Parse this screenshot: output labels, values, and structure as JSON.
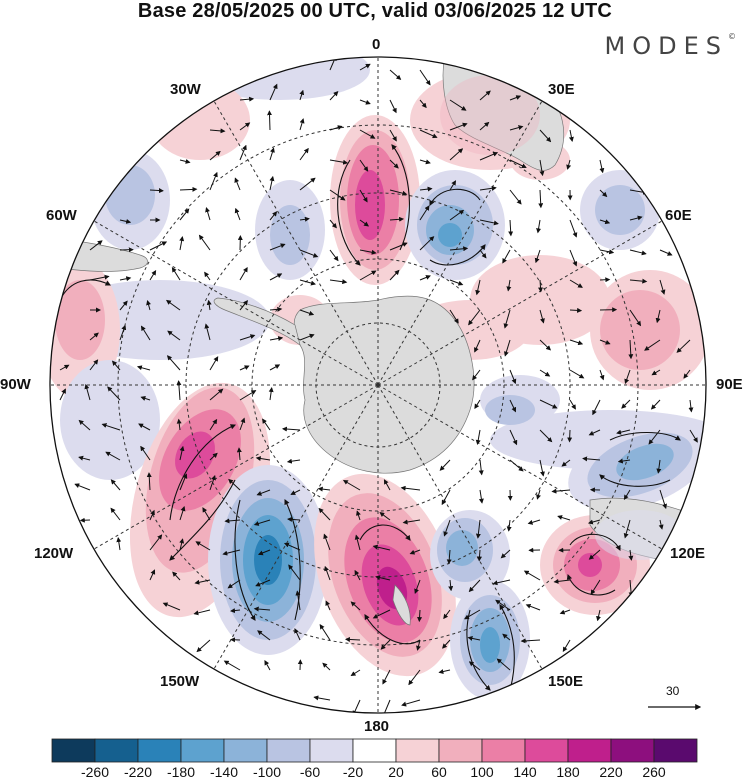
{
  "title": "Base 28/05/2025 00 UTC, valid 03/06/2025 12 UTC",
  "logo": "MODES",
  "logo_mark": "©",
  "longitude_labels": {
    "lon_0": "0",
    "lon_30e": "30E",
    "lon_60e": "60E",
    "lon_90e": "90E",
    "lon_120e": "120E",
    "lon_150e": "150E",
    "lon_180": "180",
    "lon_150w": "150W",
    "lon_120w": "120W",
    "lon_90w": "90W",
    "lon_60w": "60W",
    "lon_30w": "30W"
  },
  "vector_scale": "30",
  "colorbar": {
    "labels": [
      "-260",
      "-220",
      "-180",
      "-140",
      "-100",
      "-60",
      "-20",
      "20",
      "60",
      "100",
      "140",
      "180",
      "220",
      "260"
    ],
    "colors": [
      "#0d3a5c",
      "#15608f",
      "#2a82b8",
      "#5da2cf",
      "#8cb3d9",
      "#b9c4e2",
      "#dcdcee",
      "#ffffff",
      "#f6d2d6",
      "#f1afbd",
      "#eb7fa6",
      "#dd4b9b",
      "#bf1f8c",
      "#8d0f7e",
      "#5a0a6e"
    ]
  },
  "colors": {
    "land": "#dcdcdc",
    "coast": "#777777",
    "grid": "#333333"
  }
}
